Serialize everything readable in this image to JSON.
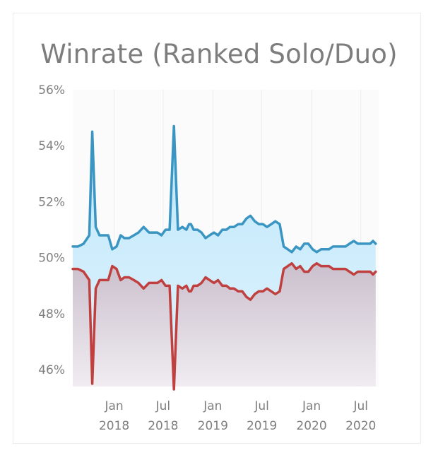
{
  "chart_data": {
    "type": "area",
    "title": "Winrate (Ranked Solo/Duo)",
    "xlabel": "",
    "ylabel": "",
    "ylim": [
      45.4,
      56
    ],
    "xlim": [
      "2017-08-01",
      "2020-09-05"
    ],
    "y_ticks": [
      56,
      54,
      52,
      50,
      48,
      46
    ],
    "y_tick_labels": [
      "56%",
      "54%",
      "52%",
      "50%",
      "48%",
      "46%"
    ],
    "x_ticks": [
      "2018-01-01",
      "2018-07-01",
      "2019-01-01",
      "2019-07-01",
      "2020-01-01",
      "2020-07-01"
    ],
    "x_tick_labels": [
      {
        "month": "Jan",
        "year": "2018"
      },
      {
        "month": "Jul",
        "year": "2018"
      },
      {
        "month": "Jan",
        "year": "2019"
      },
      {
        "month": "Jul",
        "year": "2019"
      },
      {
        "month": "Jan",
        "year": "2020"
      },
      {
        "month": "Jul",
        "year": "2020"
      }
    ],
    "grid": "vertical",
    "legend": "none",
    "colors": {
      "upper_line": "#3a95c3",
      "upper_fill": "#c9ebfa",
      "lower_line": "#c0403f",
      "lower_fill": "#d9d2db"
    },
    "series": [
      {
        "x": [
          "2017-08-01",
          "2017-08-20",
          "2017-09-10",
          "2017-10-01",
          "2017-10-12",
          "2017-10-25",
          "2017-11-08",
          "2017-11-25",
          "2017-12-10",
          "2017-12-25",
          "2018-01-10",
          "2018-01-25",
          "2018-02-08",
          "2018-02-25",
          "2018-03-15",
          "2018-04-01",
          "2018-04-20",
          "2018-05-10",
          "2018-05-25",
          "2018-06-10",
          "2018-06-25",
          "2018-07-10",
          "2018-07-25",
          "2018-08-10",
          "2018-08-25",
          "2018-09-10",
          "2018-09-25",
          "2018-10-05",
          "2018-10-12",
          "2018-10-22",
          "2018-11-05",
          "2018-11-20",
          "2018-12-05",
          "2018-12-20",
          "2019-01-05",
          "2019-01-20",
          "2019-02-05",
          "2019-02-20",
          "2019-03-05",
          "2019-03-20",
          "2019-04-05",
          "2019-04-20",
          "2019-05-05",
          "2019-05-20",
          "2019-06-05",
          "2019-06-20",
          "2019-07-05",
          "2019-07-20",
          "2019-08-05",
          "2019-08-20",
          "2019-09-05",
          "2019-09-20",
          "2019-10-05",
          "2019-10-20",
          "2019-11-05",
          "2019-11-20",
          "2019-12-05",
          "2019-12-20",
          "2020-01-05",
          "2020-01-20",
          "2020-02-05",
          "2020-02-20",
          "2020-03-05",
          "2020-03-20",
          "2020-04-05",
          "2020-04-20",
          "2020-05-05",
          "2020-05-20",
          "2020-06-05",
          "2020-06-20",
          "2020-07-05",
          "2020-07-20",
          "2020-08-05",
          "2020-08-15",
          "2020-08-25"
        ],
        "values": [
          50.4,
          50.4,
          50.5,
          50.8,
          54.5,
          51.1,
          50.8,
          50.8,
          50.8,
          50.3,
          50.4,
          50.8,
          50.7,
          50.7,
          50.8,
          50.9,
          51.1,
          50.9,
          50.9,
          50.9,
          50.8,
          51.0,
          51.0,
          54.7,
          51.0,
          51.1,
          51.0,
          51.2,
          51.2,
          51.0,
          51.0,
          50.9,
          50.7,
          50.8,
          50.9,
          50.8,
          51.0,
          51.0,
          51.1,
          51.1,
          51.2,
          51.2,
          51.4,
          51.5,
          51.3,
          51.2,
          51.2,
          51.1,
          51.2,
          51.3,
          51.2,
          50.4,
          50.3,
          50.2,
          50.4,
          50.3,
          50.5,
          50.5,
          50.3,
          50.2,
          50.3,
          50.3,
          50.3,
          50.4,
          50.4,
          50.4,
          50.4,
          50.5,
          50.6,
          50.5,
          50.5,
          50.5,
          50.5,
          50.6,
          50.5
        ]
      },
      {
        "x": [
          "2017-08-01",
          "2017-08-20",
          "2017-09-10",
          "2017-10-01",
          "2017-10-12",
          "2017-10-25",
          "2017-11-08",
          "2017-11-25",
          "2017-12-10",
          "2017-12-25",
          "2018-01-10",
          "2018-01-25",
          "2018-02-08",
          "2018-02-25",
          "2018-03-15",
          "2018-04-01",
          "2018-04-20",
          "2018-05-10",
          "2018-05-25",
          "2018-06-10",
          "2018-06-25",
          "2018-07-10",
          "2018-07-25",
          "2018-08-10",
          "2018-08-25",
          "2018-09-10",
          "2018-09-25",
          "2018-10-05",
          "2018-10-12",
          "2018-10-22",
          "2018-11-05",
          "2018-11-20",
          "2018-12-05",
          "2018-12-20",
          "2019-01-05",
          "2019-01-20",
          "2019-02-05",
          "2019-02-20",
          "2019-03-05",
          "2019-03-20",
          "2019-04-05",
          "2019-04-20",
          "2019-05-05",
          "2019-05-20",
          "2019-06-05",
          "2019-06-20",
          "2019-07-05",
          "2019-07-20",
          "2019-08-05",
          "2019-08-20",
          "2019-09-05",
          "2019-09-20",
          "2019-10-05",
          "2019-10-20",
          "2019-11-05",
          "2019-11-20",
          "2019-12-05",
          "2019-12-20",
          "2020-01-05",
          "2020-01-20",
          "2020-02-05",
          "2020-02-20",
          "2020-03-05",
          "2020-03-20",
          "2020-04-05",
          "2020-04-20",
          "2020-05-05",
          "2020-05-20",
          "2020-06-05",
          "2020-06-20",
          "2020-07-05",
          "2020-07-20",
          "2020-08-05",
          "2020-08-15",
          "2020-08-25"
        ],
        "values": [
          49.6,
          49.6,
          49.5,
          49.2,
          45.5,
          48.9,
          49.2,
          49.2,
          49.2,
          49.7,
          49.6,
          49.2,
          49.3,
          49.3,
          49.2,
          49.1,
          48.9,
          49.1,
          49.1,
          49.1,
          49.2,
          49.0,
          49.0,
          45.3,
          49.0,
          48.9,
          49.0,
          48.8,
          48.8,
          49.0,
          49.0,
          49.1,
          49.3,
          49.2,
          49.1,
          49.2,
          49.0,
          49.0,
          48.9,
          48.9,
          48.8,
          48.8,
          48.6,
          48.5,
          48.7,
          48.8,
          48.8,
          48.9,
          48.8,
          48.7,
          48.8,
          49.6,
          49.7,
          49.8,
          49.6,
          49.7,
          49.5,
          49.5,
          49.7,
          49.8,
          49.7,
          49.7,
          49.7,
          49.6,
          49.6,
          49.6,
          49.6,
          49.5,
          49.4,
          49.5,
          49.5,
          49.5,
          49.5,
          49.4,
          49.5
        ]
      }
    ]
  }
}
